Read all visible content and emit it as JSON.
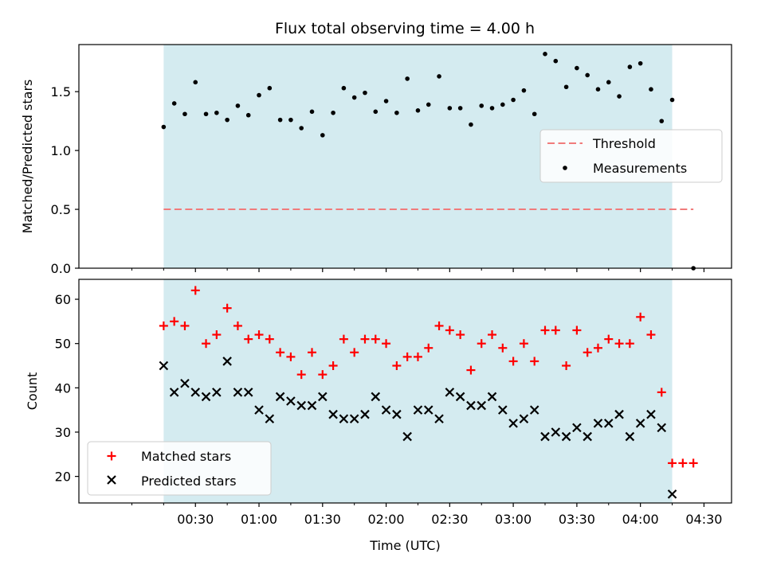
{
  "figure": {
    "title": "Flux total observing time = 4.00 h"
  },
  "chart_data": [
    {
      "type": "scatter",
      "panel": "top",
      "ylabel": "Matched/Predicted stars",
      "xlabel": "",
      "ylim": [
        0.0,
        1.9
      ],
      "yticks": [
        0.0,
        0.5,
        1.0,
        1.5
      ],
      "ytick_labels": [
        "0.0",
        "0.5",
        "1.0",
        "1.5"
      ],
      "xlim_minutes": [
        -25,
        283
      ],
      "x_unit": "minutes after 00:00 UTC",
      "shaded_span_minutes": [
        15,
        255
      ],
      "shade_color": "#d4ebf0",
      "threshold": {
        "name": "Threshold",
        "value": 0.5,
        "x_range_minutes": [
          15,
          265
        ],
        "color": "#f07b7b",
        "style": "dashed"
      },
      "legend": {
        "placement": "right",
        "entries": [
          "Threshold",
          "Measurements"
        ]
      },
      "series": [
        {
          "name": "Measurements",
          "color": "#000000",
          "marker": "dot",
          "x": [
            15,
            20,
            25,
            30,
            35,
            40,
            45,
            50,
            55,
            60,
            65,
            70,
            75,
            80,
            85,
            90,
            95,
            100,
            105,
            110,
            115,
            120,
            125,
            130,
            135,
            140,
            145,
            150,
            155,
            160,
            165,
            170,
            175,
            180,
            185,
            190,
            195,
            200,
            205,
            210,
            215,
            220,
            225,
            230,
            235,
            240,
            245,
            250,
            255,
            265
          ],
          "y": [
            1.2,
            1.4,
            1.31,
            1.58,
            1.31,
            1.32,
            1.26,
            1.38,
            1.3,
            1.47,
            1.53,
            1.26,
            1.26,
            1.19,
            1.33,
            1.13,
            1.32,
            1.53,
            1.45,
            1.49,
            1.33,
            1.42,
            1.32,
            1.61,
            1.34,
            1.39,
            1.63,
            1.36,
            1.36,
            1.22,
            1.38,
            1.36,
            1.39,
            1.43,
            1.51,
            1.31,
            1.82,
            1.76,
            1.54,
            1.7,
            1.64,
            1.52,
            1.58,
            1.46,
            1.71,
            1.74,
            1.52,
            1.25,
            1.43,
            0.0
          ]
        }
      ]
    },
    {
      "type": "scatter",
      "panel": "bottom",
      "ylabel": "Count",
      "xlabel": "Time (UTC)",
      "ylim": [
        14,
        64.5
      ],
      "yticks": [
        20,
        30,
        40,
        50,
        60
      ],
      "ytick_labels": [
        "20",
        "30",
        "40",
        "50",
        "60"
      ],
      "xlim_minutes": [
        -25,
        283
      ],
      "x_unit": "minutes after 00:00 UTC",
      "xticks_minutes": [
        30,
        60,
        90,
        120,
        150,
        180,
        210,
        240,
        270
      ],
      "xtick_labels": [
        "00:30",
        "01:00",
        "01:30",
        "02:00",
        "02:30",
        "03:00",
        "03:30",
        "04:00",
        "04:30"
      ],
      "minor_xticks_minutes": [
        0,
        15,
        45,
        75,
        105,
        135,
        165,
        195,
        225,
        255
      ],
      "shaded_span_minutes": [
        15,
        255
      ],
      "shade_color": "#d4ebf0",
      "legend": {
        "placement": "lower left",
        "entries": [
          "Matched stars",
          "Predicted stars"
        ]
      },
      "series": [
        {
          "name": "Matched stars",
          "color": "#ff0000",
          "marker": "plus",
          "x": [
            15,
            20,
            25,
            30,
            35,
            40,
            45,
            50,
            55,
            60,
            65,
            70,
            75,
            80,
            85,
            90,
            95,
            100,
            105,
            110,
            115,
            120,
            125,
            130,
            135,
            140,
            145,
            150,
            155,
            160,
            165,
            170,
            175,
            180,
            185,
            190,
            195,
            200,
            205,
            210,
            215,
            220,
            225,
            230,
            235,
            240,
            245,
            250,
            255,
            260,
            265
          ],
          "y": [
            54,
            55,
            54,
            62,
            50,
            52,
            58,
            54,
            51,
            52,
            51,
            48,
            47,
            43,
            48,
            43,
            45,
            51,
            48,
            51,
            51,
            50,
            45,
            47,
            47,
            49,
            54,
            53,
            52,
            44,
            50,
            52,
            49,
            46,
            50,
            46,
            53,
            53,
            45,
            53,
            48,
            49,
            51,
            50,
            50,
            56,
            52,
            39,
            23,
            23,
            23
          ]
        },
        {
          "name": "Predicted stars",
          "color": "#000000",
          "marker": "x",
          "x": [
            15,
            20,
            25,
            30,
            35,
            40,
            45,
            50,
            55,
            60,
            65,
            70,
            75,
            80,
            85,
            90,
            95,
            100,
            105,
            110,
            115,
            120,
            125,
            130,
            135,
            140,
            145,
            150,
            155,
            160,
            165,
            170,
            175,
            180,
            185,
            190,
            195,
            200,
            205,
            210,
            215,
            220,
            225,
            230,
            235,
            240,
            245,
            250,
            255
          ],
          "y": [
            45,
            39,
            41,
            39,
            38,
            39,
            46,
            39,
            39,
            35,
            33,
            38,
            37,
            36,
            36,
            38,
            34,
            33,
            33,
            34,
            38,
            35,
            34,
            29,
            35,
            35,
            33,
            39,
            38,
            36,
            36,
            38,
            35,
            32,
            33,
            35,
            29,
            30,
            29,
            31,
            29,
            32,
            32,
            34,
            29,
            32,
            34,
            31,
            16
          ]
        }
      ]
    }
  ]
}
